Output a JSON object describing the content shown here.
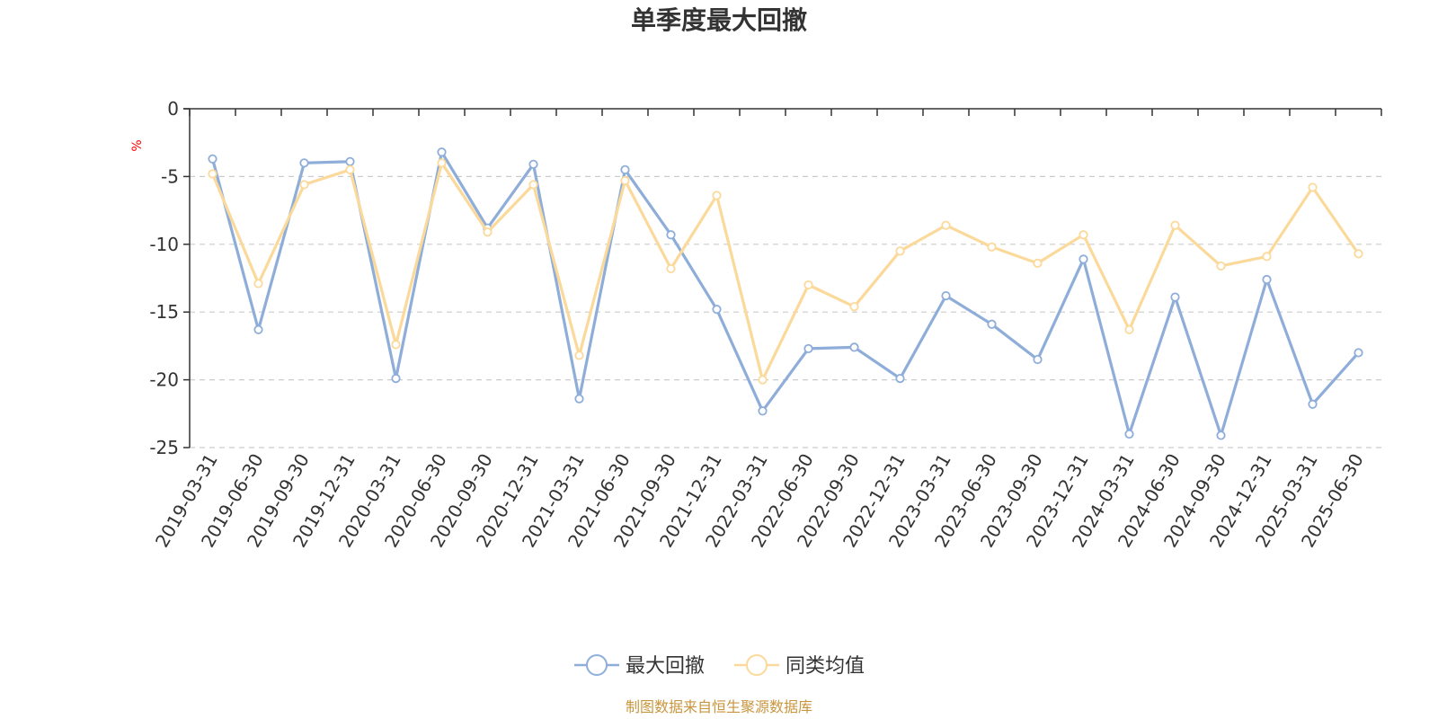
{
  "chart_data": {
    "type": "line",
    "title": "单季度最大回撤",
    "ylabel": "%",
    "ylim": [
      -25,
      0
    ],
    "yticks": [
      0,
      -5,
      -10,
      -15,
      -20,
      -25
    ],
    "grid": true,
    "legend_position": "bottom-center",
    "categories": [
      "2019-03-31",
      "2019-06-30",
      "2019-09-30",
      "2019-12-31",
      "2020-03-31",
      "2020-06-30",
      "2020-09-30",
      "2020-12-31",
      "2021-03-31",
      "2021-06-30",
      "2021-09-30",
      "2021-12-31",
      "2022-03-31",
      "2022-06-30",
      "2022-09-30",
      "2022-12-31",
      "2023-03-31",
      "2023-06-30",
      "2023-09-30",
      "2023-12-31",
      "2024-03-31",
      "2024-06-30",
      "2024-09-30",
      "2024-12-31",
      "2025-03-31",
      "2025-06-30"
    ],
    "series": [
      {
        "name": "最大回撤",
        "color": "#8eadd9",
        "values": [
          -3.7,
          -16.3,
          -4.0,
          -3.9,
          -19.9,
          -3.2,
          -8.8,
          -4.1,
          -21.4,
          -4.5,
          -9.3,
          -14.8,
          -22.3,
          -17.7,
          -17.6,
          -19.9,
          -13.8,
          -15.9,
          -18.5,
          -11.1,
          -24.0,
          -13.9,
          -24.1,
          -12.6,
          -21.8,
          -18.0
        ]
      },
      {
        "name": "同类均值",
        "color": "#fbd99a",
        "values": [
          -4.8,
          -12.9,
          -5.6,
          -4.5,
          -17.4,
          -4.0,
          -9.1,
          -5.6,
          -18.2,
          -5.3,
          -11.8,
          -6.4,
          -20.0,
          -13.0,
          -14.6,
          -10.5,
          -8.6,
          -10.2,
          -11.4,
          -9.3,
          -16.3,
          -8.6,
          -11.6,
          -10.9,
          -5.8,
          -10.7
        ]
      }
    ],
    "source_note": "制图数据来自恒生聚源数据库"
  }
}
